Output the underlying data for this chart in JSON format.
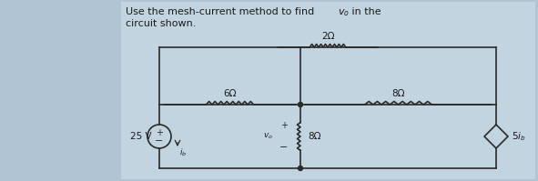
{
  "bg_color": "#b0c4d4",
  "panel_color": "#c2d4e0",
  "wire_color": "#2a2a2a",
  "text_color": "#1a1a1a",
  "title_line1": "Use the mesh-current method to find ",
  "title_vo": "$v_o$",
  "title_suffix": " in the",
  "title_line2": "circuit shown.",
  "res_2ohm": "2Ω",
  "res_6ohm": "6Ω",
  "res_8ohm_h": "8Ω",
  "res_8ohm_v": "8Ω",
  "vsrc_label": "25 V",
  "dep_label": "$5i_b$",
  "vo_label": "$v_o$",
  "ib_label": "$i_b$",
  "title_fontsize": 8.0,
  "label_fontsize": 7.5,
  "lw": 1.2
}
